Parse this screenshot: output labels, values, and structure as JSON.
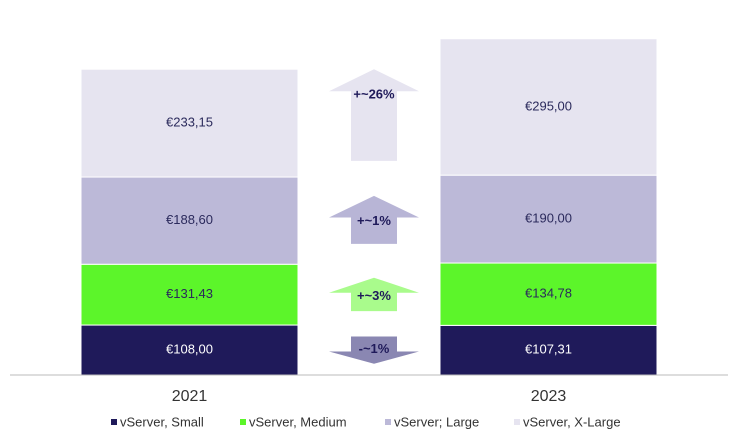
{
  "chart_data": {
    "type": "stacked-bar",
    "categories": [
      "2021",
      "2023"
    ],
    "series": [
      {
        "name": "vServer, Small",
        "color": "#1f1a5a",
        "values": [
          108.0,
          107.31
        ],
        "value_labels": [
          "€108,00",
          "€107,31"
        ]
      },
      {
        "name": "vServer, Medium",
        "color": "#5cf52a",
        "values": [
          131.43,
          134.78
        ],
        "value_labels": [
          "€131,43",
          "€134,78"
        ]
      },
      {
        "name": "vServer; Large",
        "color": "#bcb9d8",
        "values": [
          188.6,
          190.0
        ],
        "value_labels": [
          "€188,60",
          "€190,00"
        ]
      },
      {
        "name": "vServer, X-Large",
        "color": "#e6e4f0",
        "values": [
          233.15,
          295.0
        ],
        "value_labels": [
          "€233,15",
          "€295,00"
        ]
      }
    ],
    "annotations": [
      {
        "text": "-~1%",
        "direction": "down",
        "color": "#8a87b2"
      },
      {
        "text": "+~3%",
        "direction": "up",
        "color": "#a9fb8c"
      },
      {
        "text": "+~1%",
        "direction": "up",
        "color": "#b8b5d6"
      },
      {
        "text": "+~26%",
        "direction": "up",
        "color": "#e6e4f0"
      }
    ],
    "ylim": [
      0,
      800
    ],
    "legend": "bottom"
  }
}
